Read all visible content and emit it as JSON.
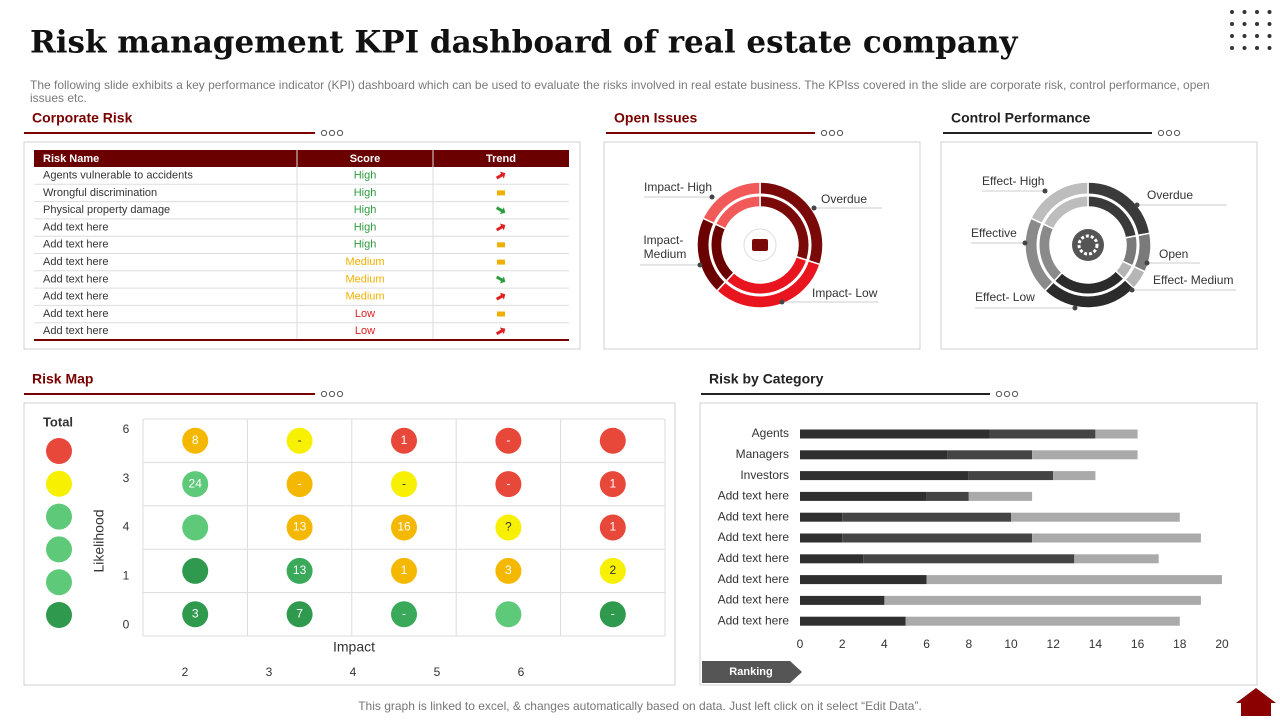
{
  "header": {
    "title": "Risk management KPI dashboard of real estate company",
    "description": "The following slide exhibits a key performance indicator (KPI) dashboard which can be used to evaluate the risks involved in real estate business. The KPIss covered in the slide are corporate risk, control performance, open issues etc."
  },
  "corporate_risk": {
    "title": "Corporate Risk",
    "columns": [
      "Risk Name",
      "Score",
      "Trend"
    ],
    "score_colors": {
      "High": "#2e9d3e",
      "Medium": "#f0b000",
      "Low": "#e02020"
    },
    "rows": [
      {
        "name": "Agents vulnerable to accidents",
        "score": "High",
        "trend": "up"
      },
      {
        "name": "Wrongful discrimination",
        "score": "High",
        "trend": "flat"
      },
      {
        "name": "Physical property damage",
        "score": "High",
        "trend": "down"
      },
      {
        "name": "Add text here",
        "score": "High",
        "trend": "up"
      },
      {
        "name": "Add text here",
        "score": "High",
        "trend": "flat"
      },
      {
        "name": "Add text here",
        "score": "Medium",
        "trend": "flat"
      },
      {
        "name": "Add text here",
        "score": "Medium",
        "trend": "down"
      },
      {
        "name": "Add text here",
        "score": "Medium",
        "trend": "up"
      },
      {
        "name": "Add text here",
        "score": "Low",
        "trend": "flat"
      },
      {
        "name": "Add text here",
        "score": "Low",
        "trend": "up"
      }
    ]
  },
  "chart_data": [
    {
      "type": "donut",
      "title": "Open Issues",
      "categories": [
        "Overdue",
        "Impact- Low",
        "Impact- Medium",
        "Impact- High"
      ],
      "values": [
        30,
        32,
        20,
        18
      ],
      "colors": [
        "#7a0a0a",
        "#e8141e",
        "#6b0000",
        "#f25a5a"
      ]
    },
    {
      "type": "donut",
      "title": "Control Performance",
      "categories": [
        "Overdue",
        "Open",
        "Effect- Medium",
        "Effect- Low",
        "Effective",
        "Effect- High"
      ],
      "values": [
        22,
        10,
        5,
        25,
        20,
        18
      ],
      "colors": [
        "#3a3a3a",
        "#7a7a7a",
        "#b5b5b5",
        "#2b2b2b",
        "#8a8a8a",
        "#bdbdbd"
      ]
    },
    {
      "type": "bar",
      "orientation": "horizontal",
      "stacked": true,
      "title": "Risk by Category",
      "note": "Ranking",
      "categories": [
        "Agents",
        "Managers",
        "Investors",
        "Add text here",
        "Add text here",
        "Add text here",
        "Add text here",
        "Add text here",
        "Add text here",
        "Add text here"
      ],
      "series": [
        {
          "color": "#2f2f2f",
          "values": [
            9,
            7,
            8,
            6,
            2,
            2,
            3,
            6,
            4,
            5
          ]
        },
        {
          "color": "#444444",
          "values": [
            5,
            4,
            4,
            2,
            8,
            9,
            10,
            0,
            0,
            0
          ]
        },
        {
          "color": "#aaaaaa",
          "values": [
            2,
            5,
            2,
            3,
            8,
            8,
            4,
            14,
            15,
            13
          ]
        }
      ],
      "xlim": [
        0,
        20
      ],
      "xticks": [
        0,
        2,
        4,
        6,
        8,
        10,
        12,
        14,
        16,
        18,
        20
      ]
    }
  ],
  "risk_map": {
    "title": "Risk Map",
    "total_label": "Total",
    "y_label": "Likelihood",
    "x_label": "Impact",
    "row_labels": [
      6,
      3,
      4,
      1,
      0
    ],
    "col_labels": [
      2,
      3,
      4,
      5,
      6
    ],
    "totals": [
      "#e8483a",
      "#f7f000",
      "#5fc97a",
      "#5fc97a",
      "#5fc97a",
      "#2f9a4e"
    ],
    "cells": [
      [
        {
          "color": "#f5b800",
          "label": 8
        },
        {
          "color": "#f7f000",
          "label": "-"
        },
        {
          "color": "#e8483a",
          "label": 1
        },
        {
          "color": "#e8483a",
          "label": "-"
        },
        {
          "color": "#e8483a"
        }
      ],
      [
        {
          "color": "#5fc97a",
          "label": 24
        },
        {
          "color": "#f5b800",
          "label": "-"
        },
        {
          "color": "#f7f000",
          "label": "-"
        },
        {
          "color": "#e8483a",
          "label": "-"
        },
        {
          "color": "#e8483a",
          "label": 1
        }
      ],
      [
        {
          "color": "#5fc97a"
        },
        {
          "color": "#f5b800",
          "label": 13
        },
        {
          "color": "#f5b800",
          "label": 16
        },
        {
          "color": "#f7f000",
          "label": "?"
        },
        {
          "color": "#e8483a",
          "label": 1
        }
      ],
      [
        {
          "color": "#2f9a4e"
        },
        {
          "color": "#3aaa5a",
          "label": 13
        },
        {
          "color": "#f5b800",
          "label": 1
        },
        {
          "color": "#f5b800",
          "label": 3
        },
        {
          "color": "#f7f000",
          "label": 2
        }
      ],
      [
        {
          "color": "#2f9a4e",
          "label": 3
        },
        {
          "color": "#2f9a4e",
          "label": 7
        },
        {
          "color": "#3aaa5a",
          "label": "-"
        },
        {
          "color": "#5fc97a"
        },
        {
          "color": "#2f9a4e",
          "label": "-"
        }
      ]
    ]
  },
  "footer": "This graph is linked to excel, & changes automatically based on data. Just left click on it select “Edit Data”."
}
